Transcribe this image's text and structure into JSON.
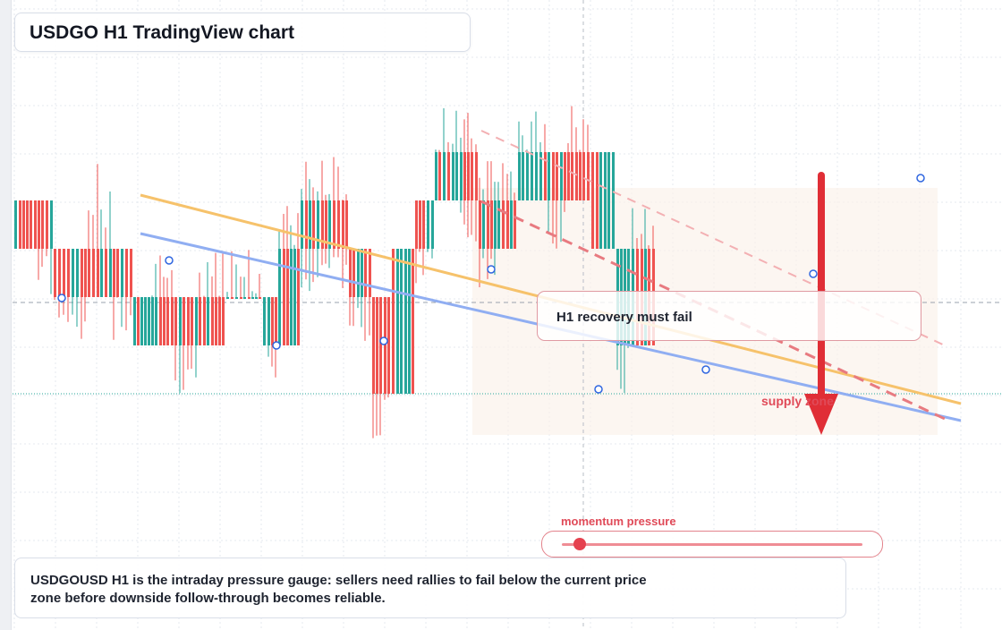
{
  "title": "USDGO H1 TradingView chart",
  "chart_data": {
    "type": "candlestick",
    "symbol": "USDGOUSD",
    "timeframe": "H1",
    "colors": {
      "up": "#26a69a",
      "down": "#ef5350",
      "grid": "#e4e8ef"
    },
    "annotations": {
      "recovery_note": "H1 recovery must fail",
      "supply_label": "supply zone",
      "momentum_label": "momentum pressure",
      "momentum_value": 0.06,
      "caption": "USDGOUSD H1 is the intraday pressure gauge: sellers need rallies to fail below the current price zone before downside follow-through becomes reliable."
    },
    "trendlines": [
      {
        "name": "",
        "color": "#f6c26b",
        "style": "solid"
      },
      {
        "name": "",
        "color": "#90aef2",
        "style": "solid"
      },
      {
        "name": "",
        "color": "#e87a80",
        "style": "dashed"
      },
      {
        "name": "",
        "color": "#f3b0b3",
        "style": "dashed"
      }
    ],
    "arrow": {
      "direction": "down",
      "color": "#e02e36"
    },
    "candles": [
      {
        "o": 2,
        "c": 3,
        "l": 2,
        "h": 3,
        "cnt": 6
      },
      {
        "o": 3,
        "c": 2,
        "l": 1,
        "h": 3,
        "cnt": 4
      },
      {
        "o": 2,
        "c": 1,
        "l": 0,
        "h": 2,
        "cnt": 8
      },
      {
        "o": 1,
        "c": 2,
        "l": 1,
        "h": 4,
        "cnt": 6
      },
      {
        "o": 2,
        "c": 1,
        "l": 0,
        "h": 2,
        "cnt": 5
      },
      {
        "o": 1,
        "c": 0,
        "l": 0,
        "h": 1,
        "cnt": 5
      },
      {
        "o": 0,
        "c": 1,
        "l": 0,
        "h": 2,
        "cnt": 6
      },
      {
        "o": 1,
        "c": 0,
        "l": -1,
        "h": 1,
        "cnt": 6
      },
      {
        "o": 0,
        "c": 1,
        "l": 0,
        "h": 2,
        "cnt": 7
      },
      {
        "o": 1,
        "c": 1,
        "l": 1,
        "h": 2,
        "cnt": 9
      },
      {
        "o": 1,
        "c": 0,
        "l": -1,
        "h": 1,
        "cnt": 4
      },
      {
        "o": 0,
        "c": 2,
        "l": 0,
        "h": 3,
        "cnt": 6
      },
      {
        "o": 2,
        "c": 3,
        "l": 1,
        "h": 4,
        "cnt": 6
      },
      {
        "o": 3,
        "c": 2,
        "l": 1,
        "h": 4,
        "cnt": 6
      },
      {
        "o": 2,
        "c": 1,
        "l": 0,
        "h": 2,
        "cnt": 6
      },
      {
        "o": 1,
        "c": -1,
        "l": -2,
        "h": 1,
        "cnt": 5
      },
      {
        "o": -1,
        "c": 2,
        "l": -1,
        "h": 2,
        "cnt": 6
      },
      {
        "o": 2,
        "c": 3,
        "l": 1,
        "h": 3,
        "cnt": 5
      },
      {
        "o": 3,
        "c": 4,
        "l": 3,
        "h": 5,
        "cnt": 6
      },
      {
        "o": 4,
        "c": 3,
        "l": 2,
        "h": 5,
        "cnt": 5
      },
      {
        "o": 3,
        "c": 2,
        "l": 1,
        "h": 4,
        "cnt": 5
      },
      {
        "o": 2,
        "c": 3,
        "l": 2,
        "h": 4,
        "cnt": 5
      },
      {
        "o": 3,
        "c": 4,
        "l": 3,
        "h": 5,
        "cnt": 7
      },
      {
        "o": 4,
        "c": 3,
        "l": 2,
        "h": 4,
        "cnt": 5
      },
      {
        "o": 3,
        "c": 4,
        "l": 3,
        "h": 5,
        "cnt": 6
      },
      {
        "o": 4,
        "c": 2,
        "l": 2,
        "h": 4,
        "cnt": 6
      },
      {
        "o": 2,
        "c": 0,
        "l": -1,
        "h": 2,
        "cnt": 4
      },
      {
        "o": 0,
        "c": 2,
        "l": 0,
        "h": 3,
        "cnt": 6
      }
    ]
  }
}
